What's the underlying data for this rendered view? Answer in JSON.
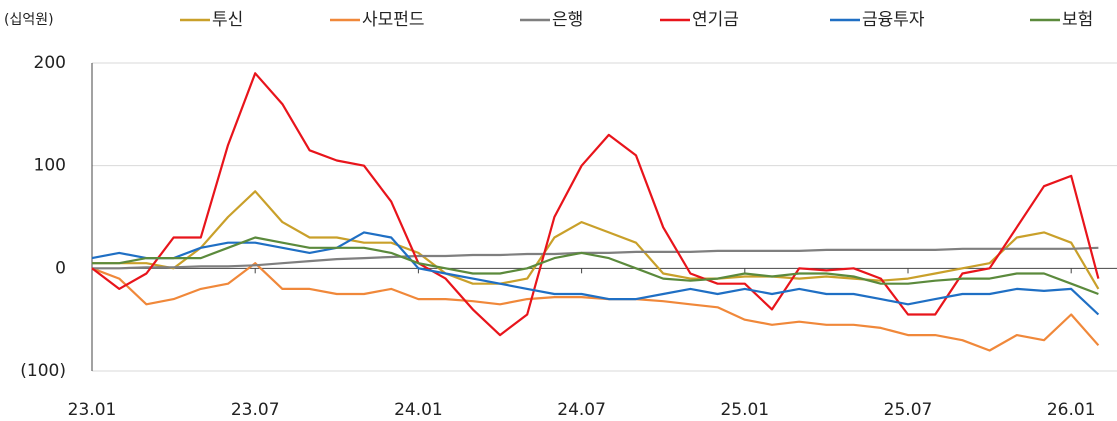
{
  "chart_data": {
    "type": "line",
    "unit_label": "(십억원)",
    "categories": [
      "23.01",
      null,
      null,
      null,
      null,
      null,
      "23.07",
      null,
      null,
      null,
      null,
      null,
      "24.01",
      null,
      null,
      null,
      null,
      null,
      "24.07",
      null,
      null,
      null,
      null,
      null,
      "25.01",
      null,
      null,
      null,
      null,
      null,
      "25.07",
      null,
      null,
      null,
      null,
      null,
      "26.01",
      null
    ],
    "series": [
      {
        "name": "투신",
        "color": "#c9a02a",
        "values": [
          5,
          5,
          5,
          0,
          20,
          50,
          75,
          45,
          30,
          30,
          25,
          25,
          15,
          -5,
          -15,
          -15,
          -10,
          30,
          45,
          35,
          25,
          -5,
          -10,
          -10,
          -8,
          -8,
          -10,
          -8,
          -10,
          -12,
          -10,
          -5,
          0,
          5,
          30,
          35,
          25,
          -20
        ]
      },
      {
        "name": "사모펀드",
        "color": "#f0883a",
        "values": [
          0,
          -10,
          -35,
          -30,
          -20,
          -15,
          5,
          -20,
          -20,
          -25,
          -25,
          -20,
          -30,
          -30,
          -32,
          -35,
          -30,
          -28,
          -28,
          -30,
          -30,
          -32,
          -35,
          -38,
          -50,
          -55,
          -52,
          -55,
          -55,
          -58,
          -65,
          -65,
          -70,
          -80,
          -65,
          -70,
          -45,
          -75
        ]
      },
      {
        "name": "은행",
        "color": "#7f7f7f",
        "values": [
          0,
          0,
          1,
          1,
          2,
          2,
          3,
          5,
          7,
          9,
          10,
          11,
          12,
          12,
          13,
          13,
          14,
          14,
          15,
          15,
          16,
          16,
          16,
          17,
          17,
          17,
          17,
          18,
          18,
          18,
          18,
          18,
          19,
          19,
          19,
          19,
          19,
          20
        ]
      },
      {
        "name": "연기금",
        "color": "#e8141b",
        "values": [
          0,
          -20,
          -5,
          30,
          30,
          120,
          190,
          160,
          115,
          105,
          100,
          65,
          5,
          -10,
          -40,
          -65,
          -45,
          50,
          100,
          130,
          110,
          40,
          -5,
          -15,
          -15,
          -40,
          0,
          -2,
          0,
          -10,
          -45,
          -45,
          -5,
          0,
          40,
          80,
          90,
          -10
        ]
      },
      {
        "name": "금융투자",
        "color": "#1f6fc4",
        "values": [
          10,
          15,
          10,
          10,
          20,
          25,
          25,
          20,
          15,
          20,
          35,
          30,
          0,
          -5,
          -10,
          -15,
          -20,
          -25,
          -25,
          -30,
          -30,
          -25,
          -20,
          -25,
          -20,
          -25,
          -20,
          -25,
          -25,
          -30,
          -35,
          -30,
          -25,
          -25,
          -20,
          -22,
          -20,
          -45
        ]
      },
      {
        "name": "보험",
        "color": "#5b8a3c",
        "values": [
          5,
          5,
          10,
          10,
          10,
          20,
          30,
          25,
          20,
          20,
          20,
          15,
          5,
          0,
          -5,
          -5,
          0,
          10,
          15,
          10,
          0,
          -10,
          -12,
          -10,
          -5,
          -8,
          -5,
          -5,
          -8,
          -15,
          -15,
          -12,
          -10,
          -10,
          -5,
          -5,
          -15,
          -25
        ]
      }
    ],
    "ylim": [
      -100,
      200
    ],
    "yticks": [
      200,
      100,
      0,
      {
        "value": -100,
        "label": "(100)"
      }
    ],
    "grid": true
  }
}
